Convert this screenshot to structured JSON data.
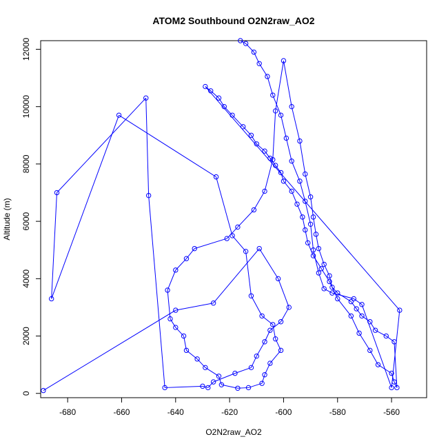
{
  "chart_data": {
    "type": "line",
    "title": "ATOM2 Southbound O2N2raw_AO2",
    "xlabel": "O2N2raw_AO2",
    "ylabel": "Altitude (m)",
    "xlim": [
      -690,
      -547
    ],
    "ylim": [
      -150,
      12300
    ],
    "xticks": [
      -680,
      -660,
      -640,
      -620,
      -600,
      -580,
      -560
    ],
    "yticks": [
      0,
      2000,
      4000,
      6000,
      8000,
      10000,
      12000
    ],
    "grid": false,
    "legend": "none",
    "markers": "open-circle",
    "series_color": "#0000ff",
    "series": [
      {
        "x": [
          -689,
          -640,
          -626,
          -609,
          -602,
          -598,
          -601,
          -605,
          -607,
          -610,
          -612,
          -618,
          -626,
          -628,
          -630,
          -644,
          -650,
          -651,
          -684,
          -686,
          -661,
          -625,
          -619,
          -614,
          -612,
          -608,
          -604,
          -603,
          -601,
          -605,
          -607,
          -608,
          -613,
          -617,
          -623,
          -624,
          -629,
          -632,
          -636,
          -637,
          -640,
          -642,
          -643,
          -640,
          -636,
          -633,
          -621,
          -617,
          -611,
          -607,
          -604,
          -603,
          -600,
          -597,
          -594,
          -592,
          -590,
          -589,
          -588,
          -587,
          -585,
          -583,
          -582,
          -580,
          -575,
          -573,
          -571,
          -568,
          -566,
          -562,
          -559,
          -558,
          -559,
          -560,
          -565,
          -568,
          -572,
          -575,
          -580,
          -583,
          -586,
          -589,
          -591,
          -592,
          -593,
          -595,
          -597,
          -600,
          -601,
          -603,
          -605,
          -607,
          -610,
          -612,
          -615,
          -619,
          -622,
          -624,
          -627,
          -629,
          -557,
          -560,
          -571,
          -574,
          -582,
          -585,
          -587,
          -589,
          -590,
          -592,
          -594,
          -597,
          -599,
          -601,
          -604,
          -606,
          -609,
          -611,
          -614,
          -616
        ],
        "y": [
          100,
          2900,
          3150,
          5050,
          4000,
          3000,
          2500,
          2200,
          1800,
          1300,
          900,
          700,
          400,
          200,
          250,
          200,
          6900,
          10300,
          7000,
          3300,
          9700,
          7550,
          5500,
          4950,
          3400,
          2700,
          2400,
          1900,
          1500,
          1050,
          650,
          350,
          200,
          180,
          300,
          600,
          900,
          1200,
          1500,
          2000,
          2300,
          2600,
          3600,
          4300,
          4700,
          5050,
          5400,
          5800,
          6400,
          7050,
          8150,
          9850,
          11600,
          10000,
          8800,
          7650,
          6850,
          6150,
          5550,
          5050,
          4500,
          4100,
          3700,
          3500,
          3200,
          2950,
          2700,
          2500,
          2200,
          2000,
          1800,
          200,
          400,
          700,
          1000,
          1500,
          2100,
          2700,
          3300,
          3900,
          4350,
          4800,
          5250,
          5700,
          6150,
          6600,
          7050,
          7400,
          7700,
          7950,
          8200,
          8450,
          8700,
          9000,
          9300,
          9700,
          10000,
          10300,
          10550,
          10700,
          2900,
          200,
          3100,
          3300,
          3500,
          3650,
          4200,
          5000,
          5900,
          6700,
          7400,
          8100,
          8900,
          9700,
          10400,
          11050,
          11500,
          11900,
          12200,
          12300
        ]
      }
    ]
  }
}
